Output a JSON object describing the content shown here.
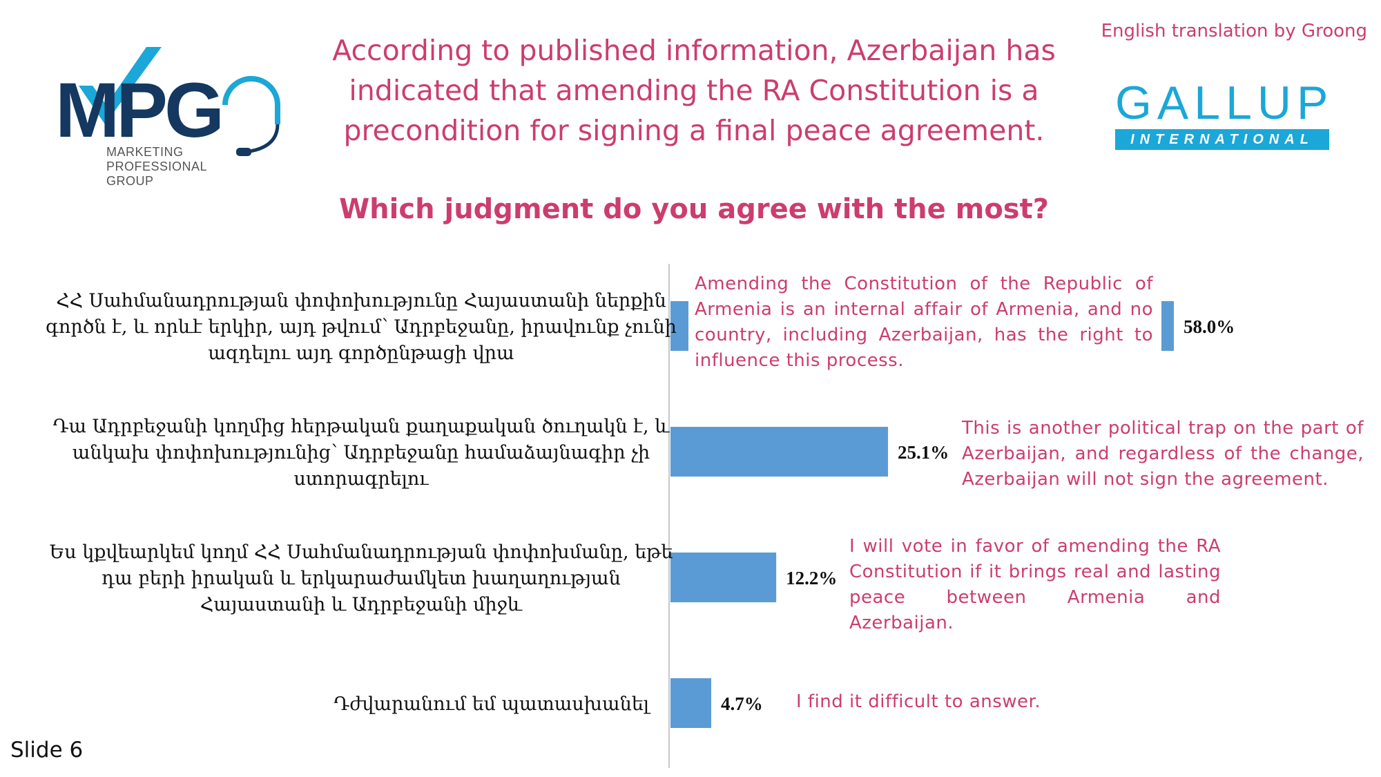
{
  "header": {
    "title": "According to published information, Azerbaijan has indicated that amending the RA Constitution is a precondition for signing a final peace agreement.",
    "title_lines": [
      "According to published information, Azerbaijan has",
      "indicated that amending the RA Constitution is a",
      "precondition for signing a final peace agreement."
    ],
    "question": "Which judgment do you agree with the most?",
    "translation_note": "English translation by Groong"
  },
  "logos": {
    "mpg": {
      "letters": "MPG",
      "subtitle_lines": [
        "MARKETING",
        "PROFESSIONAL",
        "GROUP"
      ],
      "colors": {
        "dark": "#14385f",
        "accent": "#1ba7d7"
      }
    },
    "gallup": {
      "word": "GALLUP",
      "sub": "INTERNATIONAL",
      "color": "#1ba7d7"
    }
  },
  "chart_data": {
    "type": "bar",
    "orientation": "horizontal",
    "value_suffix": "%",
    "categories": [
      "ՀՀ Սահմանադրության փոփոխությունը Հայաստանի ներքին գործն է, և որևէ երկիր, այդ թվում՝ Ադրբեջանը, իրավունք չունի ազդելու այդ գործընթացի վրա",
      "Դա Ադրբեջանի կողմից հերթական քաղաքական ծուղակն է, և անկախ փոփոխությունից՝ Ադրբեջանը համաձայնագիր չի ստորագրելու",
      "Ես կքվեարկեմ կողմ ՀՀ Սահմանադրության փոփոխմանը, եթե դա բերի իրական և երկարաժամկետ խաղաղության Հայաստանի և Ադրբեջանի միջև",
      "Դժվարանում եմ պատասխանել"
    ],
    "category_lines": [
      [
        "ՀՀ Սահմանադրության փոփոխությունը Հայաստանի ներքին",
        "գործն է, և որևէ երկիր, այդ թվում՝ Ադրբեջանը, իրավունք չունի",
        "ազդելու այդ գործընթացի վրա"
      ],
      [
        "Դա Ադրբեջանի կողմից հերթական քաղաքական ծուղակն է, և",
        "անկախ փոփոխությունից՝ Ադրբեջանը համաձայնագիր չի",
        "ստորագրելու"
      ],
      [
        "Ես կքվեարկեմ կողմ ՀՀ Սահմանադրության փոփոխմանը, եթե",
        "դա բերի իրական և երկարաժամկետ խաղաղության",
        "Հայաստանի և Ադրբեջանի միջև"
      ],
      [
        "Դժվարանում եմ պատասխանել"
      ]
    ],
    "values": [
      58.0,
      25.1,
      12.2,
      4.7
    ],
    "value_labels": [
      "58.0%",
      "25.1%",
      "12.2%",
      "4.7%"
    ],
    "bar_color": "#5b9bd5",
    "translations": [
      "Amending the Constitution of the Republic of Armenia is an internal affair of Armenia, and no country, including Azerbaijan, has the right to influence this process.",
      "This is another political trap on the part of Azerbaijan, and regardless of the change, Azerbaijan will not sign the agreement.",
      "I will vote in favor of amending the RA Constitution if it brings real and lasting peace between Armenia and Azerbaijan.",
      "I find it difficult to answer."
    ]
  },
  "footer": {
    "slide_label": "Slide 6"
  },
  "colors": {
    "accent_pink": "#cc3d6e",
    "bar_blue": "#5b9bd5"
  }
}
